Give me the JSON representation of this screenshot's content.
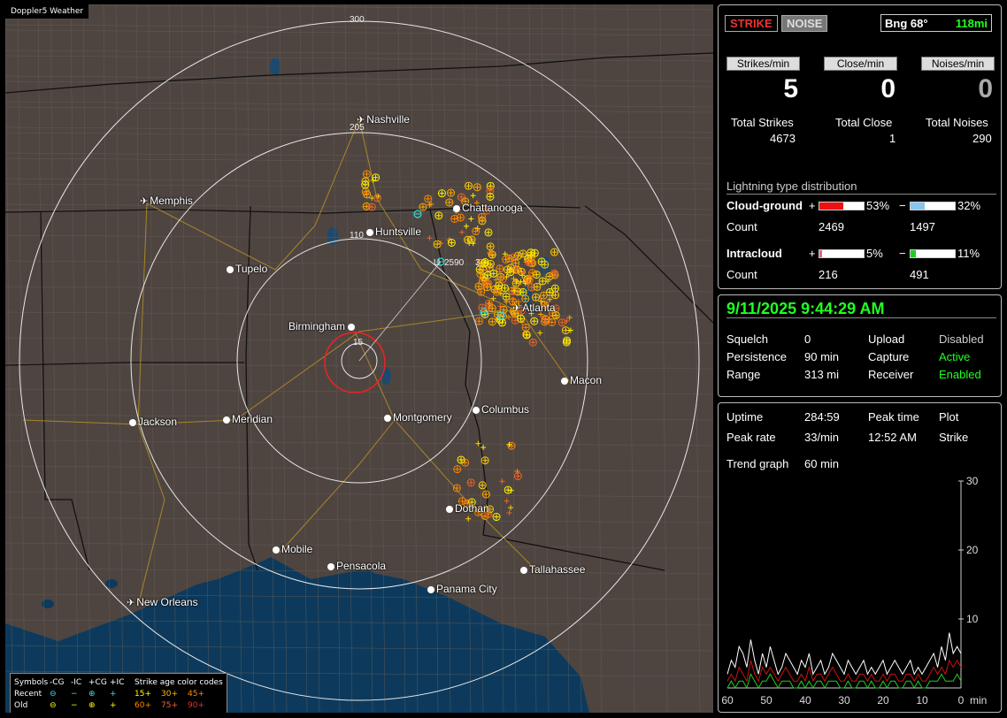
{
  "app_title": "Doppler5 Weather",
  "map": {
    "cities": [
      {
        "name": "Nashville",
        "marker": "airport"
      },
      {
        "name": "Memphis",
        "marker": "airport"
      },
      {
        "name": "Chattanooga",
        "marker": "dot"
      },
      {
        "name": "Huntsville",
        "marker": "dot"
      },
      {
        "name": "Tupelo",
        "marker": "dot"
      },
      {
        "name": "Birmingham",
        "marker": "dot"
      },
      {
        "name": "Atlanta",
        "marker": "airport"
      },
      {
        "name": "Macon",
        "marker": "dot"
      },
      {
        "name": "Jackson",
        "marker": "dot"
      },
      {
        "name": "Meridian",
        "marker": "dot"
      },
      {
        "name": "Montgomery",
        "marker": "dot"
      },
      {
        "name": "Columbus",
        "marker": "dot"
      },
      {
        "name": "Dothan",
        "marker": "dot"
      },
      {
        "name": "Mobile",
        "marker": "dot"
      },
      {
        "name": "Pensacola",
        "marker": "dot"
      },
      {
        "name": "Tallahassee",
        "marker": "dot"
      },
      {
        "name": "Panama City",
        "marker": "dot"
      },
      {
        "name": "New Orleans",
        "marker": "airport"
      }
    ],
    "ring_labels": [
      "300",
      "205",
      "110",
      "15"
    ],
    "cursor_readout": "2590",
    "cursor_side": "3",
    "cursor_prefix": "U"
  },
  "legend": {
    "symbols_label": "Symbols",
    "types": [
      "-CG",
      "-IC",
      "+CG",
      "+IC"
    ],
    "age_title": "Strike age color codes",
    "recent_label": "Recent",
    "old_label": "Old",
    "recent_ages": [
      "15+",
      "30+",
      "45+"
    ],
    "old_ages": [
      "60+",
      "75+",
      "90+"
    ],
    "recent_symbols": [
      "⊖",
      "−",
      "⊕",
      "+"
    ],
    "old_symbols": [
      "⊖",
      "−",
      "⊕",
      "+"
    ]
  },
  "status": {
    "strike_tab": "STRIKE",
    "noise_tab": "NOISE",
    "bearing": "Bng 68°",
    "range": "118mi",
    "rates": [
      {
        "label": "Strikes/min",
        "value": "5",
        "color": "#ffffff"
      },
      {
        "label": "Close/min",
        "value": "0",
        "color": "#ffffff"
      },
      {
        "label": "Noises/min",
        "value": "0",
        "color": "#aaaaaa"
      }
    ],
    "totals": [
      {
        "label": "Total Strikes",
        "value": "4673"
      },
      {
        "label": "Total Close",
        "value": "1"
      },
      {
        "label": "Total Noises",
        "value": "290"
      }
    ]
  },
  "distribution": {
    "title": "Lightning type distribution",
    "cloud_ground_label": "Cloud-ground",
    "intracloud_label": "Intracloud",
    "count_label": "Count",
    "plus_sign": "+",
    "minus_sign": "−",
    "cg_pos_pct": "53%",
    "cg_neg_pct": "32%",
    "cg_pos_count": "2469",
    "cg_neg_count": "1497",
    "ic_pos_pct": "5%",
    "ic_neg_pct": "11%",
    "ic_pos_count": "216",
    "ic_neg_count": "491",
    "cg_pos_fraction": 0.53,
    "cg_neg_fraction": 0.32,
    "ic_pos_fraction": 0.05,
    "ic_neg_fraction": 0.11,
    "colors": {
      "cg_pos": "#ee1111",
      "cg_neg": "#88c4ee",
      "ic_pos": "#e060a0",
      "ic_neg": "#22cc22"
    }
  },
  "settings": {
    "datetime": "9/11/2025 9:44:29 AM",
    "squelch_label": "Squelch",
    "squelch": "0",
    "persistence_label": "Persistence",
    "persistence": "90 min",
    "range_label": "Range",
    "range": "313 mi",
    "upload_label": "Upload",
    "upload": "Disabled",
    "capture_label": "Capture",
    "capture": "Active",
    "receiver_label": "Receiver",
    "receiver": "Enabled"
  },
  "stats": {
    "uptime_label": "Uptime",
    "uptime": "284:59",
    "peak_time_label": "Peak time",
    "peak_time": "12:52 AM",
    "plot_label": "Plot",
    "plot": "Strike",
    "peak_rate_label": "Peak rate",
    "peak_rate": "33/min",
    "trend_label": "Trend graph",
    "trend": "60 min"
  },
  "chart_data": {
    "type": "line",
    "x_ticks": [
      "60",
      "50",
      "40",
      "30",
      "20",
      "10",
      "0"
    ],
    "x_unit": "min",
    "y_ticks": [
      "30",
      "20",
      "10"
    ],
    "ylim": [
      0,
      30
    ],
    "xlim": [
      60,
      0
    ],
    "series": [
      {
        "color": "#ffffff",
        "values": [
          2,
          4,
          3,
          6,
          5,
          3,
          7,
          4,
          2,
          5,
          3,
          6,
          4,
          2,
          3,
          5,
          4,
          3,
          2,
          4,
          3,
          5,
          2,
          3,
          4,
          2,
          3,
          5,
          4,
          3,
          2,
          4,
          3,
          2,
          3,
          4,
          2,
          3,
          2,
          3,
          4,
          2,
          3,
          4,
          3,
          2,
          3,
          4,
          2,
          3,
          2,
          3,
          4,
          5,
          3,
          6,
          4,
          8,
          5,
          6,
          5
        ]
      },
      {
        "color": "#cc1111",
        "values": [
          1,
          2,
          1,
          3,
          2,
          1,
          4,
          2,
          1,
          3,
          2,
          3,
          2,
          1,
          2,
          3,
          2,
          1,
          1,
          2,
          1,
          3,
          1,
          2,
          2,
          1,
          2,
          3,
          2,
          1,
          1,
          2,
          1,
          1,
          2,
          2,
          1,
          2,
          1,
          1,
          2,
          1,
          2,
          2,
          1,
          1,
          2,
          2,
          1,
          2,
          1,
          1,
          2,
          3,
          2,
          3,
          2,
          4,
          3,
          4,
          3
        ]
      },
      {
        "color": "#22cc22",
        "values": [
          0,
          1,
          0,
          1,
          1,
          0,
          2,
          1,
          0,
          1,
          1,
          2,
          1,
          0,
          1,
          1,
          1,
          0,
          0,
          1,
          0,
          1,
          0,
          1,
          1,
          0,
          1,
          1,
          1,
          0,
          0,
          1,
          0,
          0,
          1,
          1,
          0,
          1,
          0,
          0,
          1,
          0,
          1,
          1,
          0,
          0,
          1,
          1,
          0,
          1,
          0,
          0,
          1,
          1,
          1,
          2,
          1,
          1,
          1,
          2,
          1
        ]
      }
    ]
  }
}
